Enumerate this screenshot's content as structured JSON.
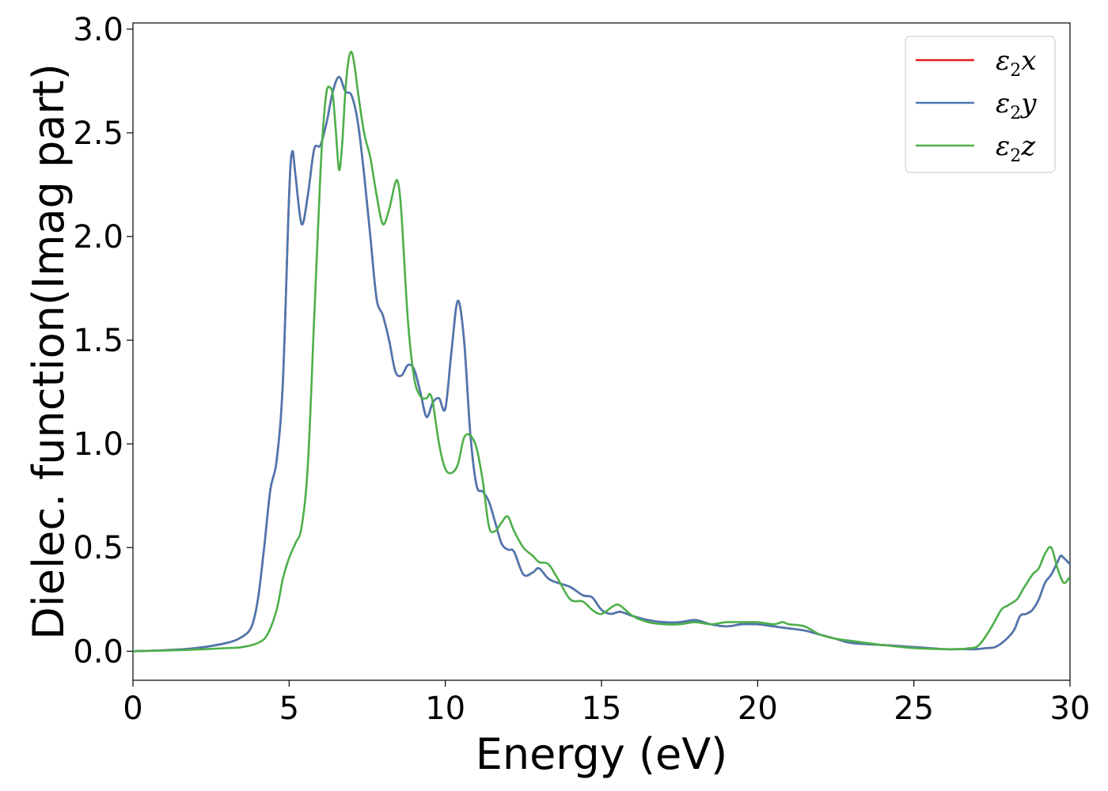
{
  "chart_data": {
    "type": "line",
    "xlabel": "Energy (eV)",
    "ylabel": "Dielec. function(Imag part)",
    "xlim": [
      0,
      30
    ],
    "ylim": [
      -0.14,
      3.03
    ],
    "xticks": [
      0,
      5,
      10,
      15,
      20,
      25,
      30
    ],
    "yticks": [
      0.0,
      0.5,
      1.0,
      1.5,
      2.0,
      2.5,
      3.0
    ],
    "xtick_labels": [
      "0",
      "5",
      "10",
      "15",
      "20",
      "25",
      "30"
    ],
    "ytick_labels": [
      "0.0",
      "0.5",
      "1.0",
      "1.5",
      "2.0",
      "2.5",
      "3.0"
    ],
    "grid": false,
    "legend_position": "top-right",
    "series": [
      {
        "name": "ε2x",
        "legend_symbol": "ε",
        "legend_subscript": "2",
        "legend_var": "x",
        "color": "#e41a1c",
        "x": [
          0,
          1,
          2,
          3,
          3.5,
          3.8,
          4.0,
          4.2,
          4.4,
          4.6,
          4.8,
          5.0,
          5.1,
          5.2,
          5.4,
          5.6,
          5.8,
          6.0,
          6.2,
          6.4,
          6.6,
          6.8,
          7.0,
          7.2,
          7.4,
          7.6,
          7.8,
          8.0,
          8.2,
          8.4,
          8.6,
          8.8,
          9.0,
          9.2,
          9.4,
          9.6,
          9.8,
          10.0,
          10.2,
          10.4,
          10.6,
          10.8,
          11.0,
          11.2,
          11.4,
          11.6,
          11.8,
          12.0,
          12.2,
          12.5,
          12.8,
          13.0,
          13.3,
          13.6,
          14.0,
          14.4,
          14.7,
          15.0,
          15.3,
          15.6,
          16.0,
          16.5,
          17.0,
          17.5,
          18.0,
          18.5,
          19.0,
          19.5,
          20.0,
          20.5,
          21.0,
          21.5,
          22.0,
          22.5,
          23.0,
          24.0,
          25.0,
          25.5,
          26.0,
          26.5,
          27.0,
          27.3,
          27.6,
          27.9,
          28.2,
          28.4,
          28.6,
          28.8,
          29.0,
          29.2,
          29.4,
          29.6,
          29.7,
          29.8,
          30.0
        ],
        "y": [
          0.0,
          0.005,
          0.015,
          0.04,
          0.07,
          0.12,
          0.25,
          0.5,
          0.78,
          0.92,
          1.3,
          2.2,
          2.41,
          2.3,
          2.06,
          2.2,
          2.42,
          2.44,
          2.55,
          2.7,
          2.77,
          2.7,
          2.68,
          2.55,
          2.3,
          2.0,
          1.7,
          1.62,
          1.5,
          1.35,
          1.33,
          1.38,
          1.36,
          1.25,
          1.13,
          1.2,
          1.22,
          1.17,
          1.45,
          1.69,
          1.5,
          1.05,
          0.8,
          0.77,
          0.72,
          0.62,
          0.52,
          0.49,
          0.48,
          0.37,
          0.38,
          0.4,
          0.35,
          0.33,
          0.31,
          0.27,
          0.26,
          0.2,
          0.18,
          0.19,
          0.17,
          0.15,
          0.14,
          0.14,
          0.15,
          0.13,
          0.12,
          0.13,
          0.13,
          0.12,
          0.11,
          0.1,
          0.08,
          0.06,
          0.04,
          0.03,
          0.02,
          0.015,
          0.01,
          0.01,
          0.01,
          0.015,
          0.02,
          0.05,
          0.1,
          0.17,
          0.18,
          0.2,
          0.25,
          0.33,
          0.37,
          0.43,
          0.46,
          0.45,
          0.42
        ]
      },
      {
        "name": "ε2y",
        "legend_symbol": "ε",
        "legend_subscript": "2",
        "legend_var": "y",
        "color": "#4a78b0",
        "x": [
          0,
          1,
          2,
          3,
          3.5,
          3.8,
          4.0,
          4.2,
          4.4,
          4.6,
          4.8,
          5.0,
          5.1,
          5.2,
          5.4,
          5.6,
          5.8,
          6.0,
          6.2,
          6.4,
          6.6,
          6.8,
          7.0,
          7.2,
          7.4,
          7.6,
          7.8,
          8.0,
          8.2,
          8.4,
          8.6,
          8.8,
          9.0,
          9.2,
          9.4,
          9.6,
          9.8,
          10.0,
          10.2,
          10.4,
          10.6,
          10.8,
          11.0,
          11.2,
          11.4,
          11.6,
          11.8,
          12.0,
          12.2,
          12.5,
          12.8,
          13.0,
          13.3,
          13.6,
          14.0,
          14.4,
          14.7,
          15.0,
          15.3,
          15.6,
          16.0,
          16.5,
          17.0,
          17.5,
          18.0,
          18.5,
          19.0,
          19.5,
          20.0,
          20.5,
          21.0,
          21.5,
          22.0,
          22.5,
          23.0,
          24.0,
          25.0,
          25.5,
          26.0,
          26.5,
          27.0,
          27.3,
          27.6,
          27.9,
          28.2,
          28.4,
          28.6,
          28.8,
          29.0,
          29.2,
          29.4,
          29.6,
          29.7,
          29.8,
          30.0
        ],
        "y": [
          0.0,
          0.005,
          0.015,
          0.04,
          0.07,
          0.12,
          0.25,
          0.5,
          0.78,
          0.92,
          1.3,
          2.2,
          2.41,
          2.3,
          2.06,
          2.2,
          2.42,
          2.44,
          2.55,
          2.7,
          2.77,
          2.7,
          2.68,
          2.55,
          2.3,
          2.0,
          1.7,
          1.62,
          1.5,
          1.35,
          1.33,
          1.38,
          1.36,
          1.25,
          1.13,
          1.2,
          1.22,
          1.17,
          1.45,
          1.69,
          1.5,
          1.05,
          0.8,
          0.77,
          0.72,
          0.62,
          0.52,
          0.49,
          0.48,
          0.37,
          0.38,
          0.4,
          0.35,
          0.33,
          0.31,
          0.27,
          0.26,
          0.2,
          0.18,
          0.19,
          0.17,
          0.15,
          0.14,
          0.14,
          0.15,
          0.13,
          0.12,
          0.13,
          0.13,
          0.12,
          0.11,
          0.1,
          0.08,
          0.06,
          0.04,
          0.03,
          0.02,
          0.015,
          0.01,
          0.01,
          0.01,
          0.015,
          0.02,
          0.05,
          0.1,
          0.17,
          0.18,
          0.2,
          0.25,
          0.33,
          0.37,
          0.43,
          0.46,
          0.45,
          0.42
        ]
      },
      {
        "name": "ε2z",
        "legend_symbol": "ε",
        "legend_subscript": "2",
        "legend_var": "z",
        "color": "#4daf4a",
        "x": [
          0,
          1,
          2,
          3,
          3.5,
          4.0,
          4.3,
          4.6,
          4.8,
          5.0,
          5.2,
          5.4,
          5.6,
          5.8,
          6.0,
          6.1,
          6.2,
          6.3,
          6.4,
          6.5,
          6.6,
          6.7,
          6.8,
          6.9,
          7.0,
          7.1,
          7.2,
          7.4,
          7.6,
          7.8,
          8.0,
          8.2,
          8.4,
          8.5,
          8.6,
          8.8,
          9.0,
          9.2,
          9.4,
          9.5,
          9.6,
          9.8,
          10.0,
          10.2,
          10.4,
          10.6,
          10.8,
          11.0,
          11.2,
          11.4,
          11.6,
          11.8,
          12.0,
          12.2,
          12.5,
          12.8,
          13.0,
          13.3,
          13.6,
          14.0,
          14.4,
          14.7,
          15.0,
          15.4,
          15.6,
          16.0,
          16.5,
          17.0,
          17.5,
          18.0,
          18.5,
          19.0,
          19.5,
          20.0,
          20.5,
          20.8,
          21.0,
          21.5,
          22.0,
          22.5,
          23.0,
          24.0,
          25.0,
          26.0,
          26.5,
          26.8,
          27.0,
          27.2,
          27.5,
          27.8,
          28.0,
          28.3,
          28.5,
          28.8,
          29.0,
          29.2,
          29.4,
          29.6,
          29.8,
          30.0
        ],
        "y": [
          0.0,
          0.003,
          0.008,
          0.015,
          0.02,
          0.04,
          0.08,
          0.2,
          0.35,
          0.45,
          0.52,
          0.6,
          0.9,
          1.6,
          2.3,
          2.55,
          2.7,
          2.72,
          2.68,
          2.5,
          2.32,
          2.45,
          2.7,
          2.85,
          2.89,
          2.82,
          2.7,
          2.5,
          2.38,
          2.2,
          2.06,
          2.13,
          2.26,
          2.25,
          2.1,
          1.6,
          1.32,
          1.23,
          1.22,
          1.24,
          1.2,
          1.0,
          0.88,
          0.86,
          0.9,
          1.03,
          1.04,
          0.98,
          0.82,
          0.6,
          0.58,
          0.62,
          0.65,
          0.58,
          0.5,
          0.46,
          0.43,
          0.42,
          0.35,
          0.25,
          0.24,
          0.2,
          0.18,
          0.22,
          0.22,
          0.17,
          0.14,
          0.13,
          0.13,
          0.14,
          0.13,
          0.14,
          0.14,
          0.14,
          0.13,
          0.14,
          0.13,
          0.12,
          0.08,
          0.06,
          0.05,
          0.03,
          0.015,
          0.01,
          0.01,
          0.015,
          0.02,
          0.05,
          0.12,
          0.2,
          0.22,
          0.25,
          0.3,
          0.37,
          0.4,
          0.47,
          0.5,
          0.4,
          0.33,
          0.36
        ]
      }
    ]
  }
}
